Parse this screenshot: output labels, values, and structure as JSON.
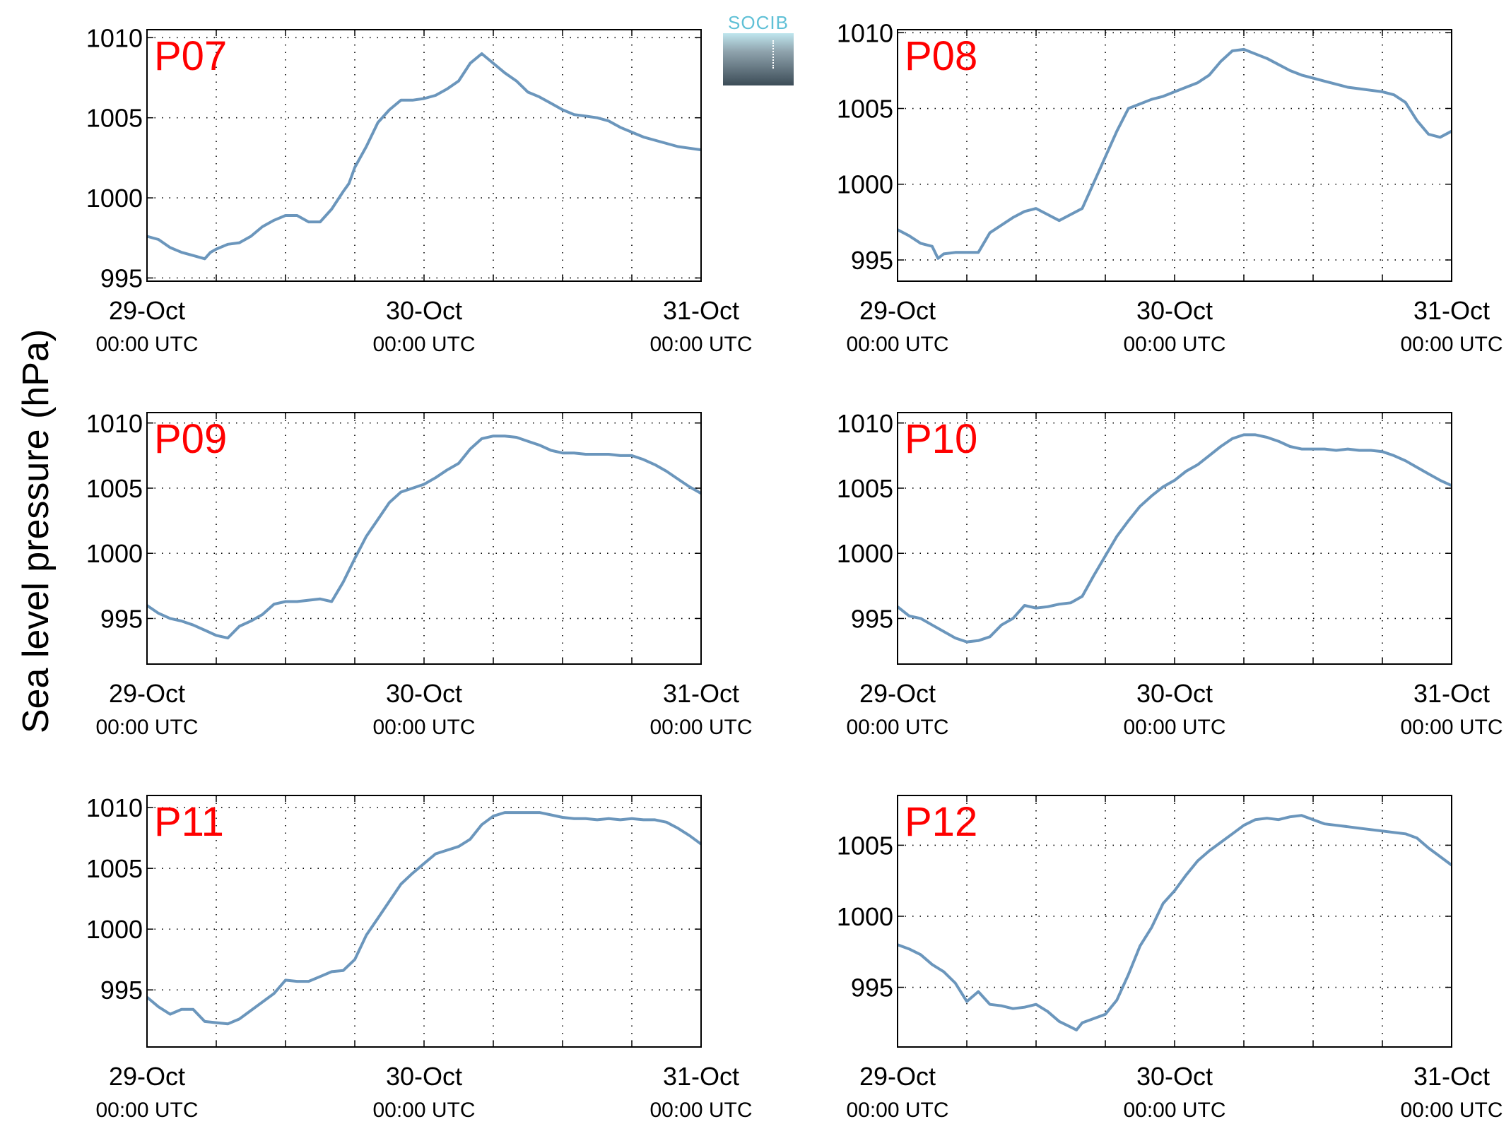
{
  "ylabel": "Sea level pressure (hPa)",
  "logo_text": "SOCIB",
  "colors": {
    "line": "#6b96bc",
    "panel_label": "#ff0000",
    "axis": "#000000",
    "grid": "#000000"
  },
  "chart_data": [
    {
      "type": "line",
      "title": "P07",
      "x_ticks": [
        {
          "top": "29-Oct",
          "bottom": "00:00 UTC"
        },
        {
          "top": "30-Oct",
          "bottom": "00:00 UTC"
        },
        {
          "top": "31-Oct",
          "bottom": "00:00 UTC"
        }
      ],
      "xlim_hours": [
        0,
        48
      ],
      "ylim": [
        994.8,
        1010.5
      ],
      "yticks": [
        995,
        1000,
        1005,
        1010
      ],
      "grid": true,
      "series": [
        {
          "x_hours": [
            0,
            1,
            2,
            3,
            4,
            5,
            5.5,
            6,
            7,
            8,
            9,
            10,
            11,
            12,
            13,
            14,
            15,
            16,
            17,
            17.5,
            18,
            19,
            20,
            21,
            22,
            23,
            24,
            25,
            26,
            27,
            28,
            29,
            30,
            31,
            32,
            33,
            34,
            35,
            36,
            37,
            38,
            39,
            40,
            41,
            42,
            43,
            44,
            45,
            46,
            47,
            48
          ],
          "values": [
            997.6,
            997.4,
            996.9,
            996.6,
            996.4,
            996.2,
            996.6,
            996.8,
            997.1,
            997.2,
            997.6,
            998.2,
            998.6,
            998.9,
            998.9,
            998.5,
            998.5,
            999.3,
            1000.4,
            1000.9,
            1001.9,
            1003.2,
            1004.7,
            1005.5,
            1006.1,
            1006.1,
            1006.2,
            1006.4,
            1006.8,
            1007.3,
            1008.4,
            1009.0,
            1008.4,
            1007.8,
            1007.3,
            1006.6,
            1006.3,
            1005.9,
            1005.5,
            1005.2,
            1005.1,
            1005.0,
            1004.8,
            1004.4,
            1004.1,
            1003.8,
            1003.6,
            1003.4,
            1003.2,
            1003.1,
            1003.0
          ]
        }
      ]
    },
    {
      "type": "line",
      "title": "P08",
      "x_ticks": [
        {
          "top": "29-Oct",
          "bottom": "00:00 UTC"
        },
        {
          "top": "30-Oct",
          "bottom": "00:00 UTC"
        },
        {
          "top": "31-Oct",
          "bottom": "00:00 UTC"
        }
      ],
      "xlim_hours": [
        0,
        48
      ],
      "ylim": [
        993.6,
        1010.2
      ],
      "yticks": [
        995,
        1000,
        1005,
        1010
      ],
      "grid": true,
      "series": [
        {
          "x_hours": [
            0,
            1,
            2,
            3,
            3.5,
            4,
            5,
            6,
            7,
            8,
            9,
            10,
            11,
            12,
            13,
            14,
            15,
            16,
            17,
            18,
            19,
            20,
            21,
            22,
            23,
            24,
            25,
            26,
            27,
            28,
            29,
            30,
            31,
            32,
            33,
            34,
            35,
            36,
            37,
            38,
            39,
            40,
            41,
            42,
            43,
            44,
            45,
            46,
            47,
            48
          ],
          "values": [
            997.0,
            996.6,
            996.1,
            995.9,
            995.1,
            995.4,
            995.5,
            995.5,
            995.5,
            996.8,
            997.3,
            997.8,
            998.2,
            998.4,
            998.0,
            997.6,
            998.0,
            998.4,
            1000.1,
            1001.8,
            1003.5,
            1005.0,
            1005.3,
            1005.6,
            1005.8,
            1006.1,
            1006.4,
            1006.7,
            1007.2,
            1008.1,
            1008.8,
            1008.9,
            1008.6,
            1008.3,
            1007.9,
            1007.5,
            1007.2,
            1007.0,
            1006.8,
            1006.6,
            1006.4,
            1006.3,
            1006.2,
            1006.1,
            1005.9,
            1005.4,
            1004.2,
            1003.3,
            1003.1,
            1003.5
          ]
        }
      ]
    },
    {
      "type": "line",
      "title": "P09",
      "x_ticks": [
        {
          "top": "29-Oct",
          "bottom": "00:00 UTC"
        },
        {
          "top": "30-Oct",
          "bottom": "00:00 UTC"
        },
        {
          "top": "31-Oct",
          "bottom": "00:00 UTC"
        }
      ],
      "xlim_hours": [
        0,
        48
      ],
      "ylim": [
        991.5,
        1010.8
      ],
      "yticks": [
        995,
        1000,
        1005,
        1010
      ],
      "grid": true,
      "series": [
        {
          "x_hours": [
            0,
            1,
            2,
            3,
            4,
            5,
            6,
            7,
            8,
            9,
            10,
            11,
            12,
            13,
            14,
            15,
            16,
            17,
            18,
            19,
            20,
            21,
            22,
            23,
            24,
            25,
            26,
            27,
            28,
            29,
            30,
            31,
            32,
            33,
            34,
            35,
            36,
            37,
            38,
            39,
            40,
            41,
            42,
            43,
            44,
            45,
            46,
            47,
            48
          ],
          "values": [
            996.0,
            995.4,
            995.0,
            994.8,
            994.5,
            994.1,
            993.7,
            993.5,
            994.4,
            994.8,
            995.3,
            996.1,
            996.3,
            996.3,
            996.4,
            996.5,
            996.3,
            997.8,
            999.6,
            1001.3,
            1002.6,
            1003.9,
            1004.7,
            1005.0,
            1005.3,
            1005.8,
            1006.4,
            1006.9,
            1008.0,
            1008.8,
            1009.0,
            1009.0,
            1008.9,
            1008.6,
            1008.3,
            1007.9,
            1007.7,
            1007.7,
            1007.6,
            1007.6,
            1007.6,
            1007.5,
            1007.5,
            1007.2,
            1006.8,
            1006.3,
            1005.7,
            1005.1,
            1004.6
          ]
        }
      ]
    },
    {
      "type": "line",
      "title": "P10",
      "x_ticks": [
        {
          "top": "29-Oct",
          "bottom": "00:00 UTC"
        },
        {
          "top": "30-Oct",
          "bottom": "00:00 UTC"
        },
        {
          "top": "31-Oct",
          "bottom": "00:00 UTC"
        }
      ],
      "xlim_hours": [
        0,
        48
      ],
      "ylim": [
        991.5,
        1010.8
      ],
      "yticks": [
        995,
        1000,
        1005,
        1010
      ],
      "grid": true,
      "series": [
        {
          "x_hours": [
            0,
            1,
            2,
            3,
            4,
            5,
            6,
            7,
            8,
            9,
            10,
            11,
            12,
            13,
            14,
            15,
            16,
            17,
            18,
            19,
            20,
            21,
            22,
            23,
            24,
            25,
            26,
            27,
            28,
            29,
            30,
            31,
            32,
            33,
            34,
            35,
            36,
            37,
            38,
            39,
            40,
            41,
            42,
            43,
            44,
            45,
            46,
            47,
            48
          ],
          "values": [
            995.9,
            995.2,
            995.0,
            994.5,
            994.0,
            993.5,
            993.2,
            993.3,
            993.6,
            994.5,
            995.0,
            996.0,
            995.8,
            995.9,
            996.1,
            996.2,
            996.7,
            998.3,
            999.8,
            1001.3,
            1002.5,
            1003.6,
            1004.4,
            1005.1,
            1005.6,
            1006.3,
            1006.8,
            1007.5,
            1008.2,
            1008.8,
            1009.1,
            1009.1,
            1008.9,
            1008.6,
            1008.2,
            1008.0,
            1008.0,
            1008.0,
            1007.9,
            1008.0,
            1007.9,
            1007.9,
            1007.8,
            1007.5,
            1007.1,
            1006.6,
            1006.1,
            1005.6,
            1005.2
          ]
        }
      ]
    },
    {
      "type": "line",
      "title": "P11",
      "x_ticks": [
        {
          "top": "29-Oct",
          "bottom": "00:00 UTC"
        },
        {
          "top": "30-Oct",
          "bottom": "00:00 UTC"
        },
        {
          "top": "31-Oct",
          "bottom": "00:00 UTC"
        }
      ],
      "xlim_hours": [
        0,
        48
      ],
      "ylim": [
        990.3,
        1011.0
      ],
      "yticks": [
        995,
        1000,
        1005,
        1010
      ],
      "grid": true,
      "series": [
        {
          "x_hours": [
            0,
            1,
            2,
            3,
            4,
            5,
            6,
            7,
            8,
            9,
            10,
            11,
            12,
            13,
            14,
            15,
            16,
            17,
            18,
            19,
            20,
            21,
            22,
            23,
            24,
            25,
            26,
            27,
            28,
            29,
            30,
            31,
            32,
            33,
            34,
            35,
            36,
            37,
            38,
            39,
            40,
            41,
            42,
            43,
            44,
            45,
            46,
            47,
            48
          ],
          "values": [
            994.4,
            993.6,
            993.0,
            993.4,
            993.4,
            992.4,
            992.3,
            992.2,
            992.6,
            993.3,
            994.0,
            994.7,
            995.8,
            995.7,
            995.7,
            996.1,
            996.5,
            996.6,
            997.5,
            999.5,
            1000.9,
            1002.3,
            1003.7,
            1004.6,
            1005.4,
            1006.2,
            1006.5,
            1006.8,
            1007.4,
            1008.6,
            1009.3,
            1009.6,
            1009.6,
            1009.6,
            1009.6,
            1009.4,
            1009.2,
            1009.1,
            1009.1,
            1009.0,
            1009.1,
            1009.0,
            1009.1,
            1009.0,
            1009.0,
            1008.8,
            1008.3,
            1007.7,
            1007.0
          ]
        }
      ]
    },
    {
      "type": "line",
      "title": "P12",
      "x_ticks": [
        {
          "top": "29-Oct",
          "bottom": "00:00 UTC"
        },
        {
          "top": "30-Oct",
          "bottom": "00:00 UTC"
        },
        {
          "top": "31-Oct",
          "bottom": "00:00 UTC"
        }
      ],
      "xlim_hours": [
        0,
        48
      ],
      "ylim": [
        990.8,
        1008.5
      ],
      "yticks": [
        995,
        1000,
        1005
      ],
      "grid": true,
      "series": [
        {
          "x_hours": [
            0,
            1,
            2,
            3,
            4,
            5,
            6,
            7,
            8,
            9,
            10,
            11,
            12,
            13,
            14,
            15,
            15.5,
            16,
            17,
            18,
            19,
            20,
            21,
            22,
            23,
            24,
            25,
            26,
            27,
            28,
            29,
            30,
            31,
            32,
            33,
            34,
            35,
            36,
            37,
            38,
            39,
            40,
            41,
            42,
            43,
            44,
            45,
            46,
            47,
            48
          ],
          "values": [
            998.0,
            997.7,
            997.3,
            996.6,
            996.1,
            995.3,
            994.0,
            994.7,
            993.8,
            993.7,
            993.5,
            993.6,
            993.8,
            993.3,
            992.6,
            992.2,
            992.0,
            992.5,
            992.8,
            993.1,
            994.1,
            995.9,
            997.9,
            999.2,
            1000.9,
            1001.8,
            1002.9,
            1003.9,
            1004.6,
            1005.2,
            1005.8,
            1006.4,
            1006.8,
            1006.9,
            1006.8,
            1007.0,
            1007.1,
            1006.8,
            1006.5,
            1006.4,
            1006.3,
            1006.2,
            1006.1,
            1006.0,
            1005.9,
            1005.8,
            1005.5,
            1004.8,
            1004.2,
            1003.6
          ]
        }
      ]
    }
  ]
}
